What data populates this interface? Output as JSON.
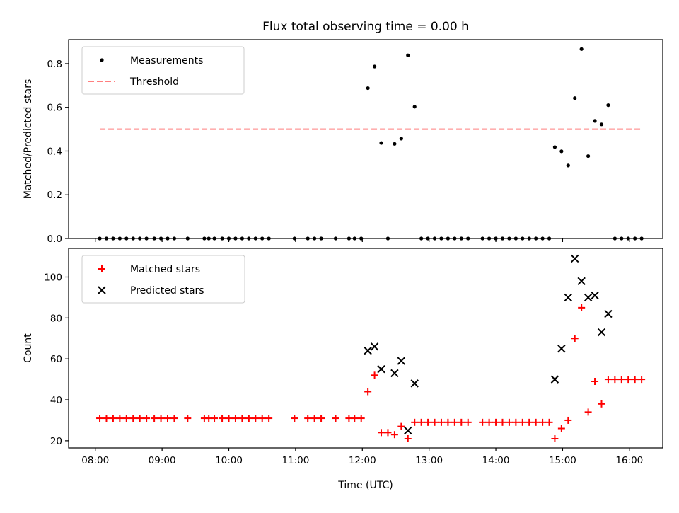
{
  "chart_data": [
    {
      "type": "scatter",
      "title": "Flux total observing time = 0.00 h",
      "ylabel": "Matched/Predicted stars",
      "xlim": [
        "07:36",
        "16:30"
      ],
      "ylim": [
        0,
        0.91
      ],
      "yticks": [
        "0.0",
        "0.2",
        "0.4",
        "0.6",
        "0.8"
      ],
      "grid": false,
      "legend_position": "upper-left",
      "series": [
        {
          "name": "Measurements",
          "marker": "dot",
          "color": "#000000",
          "points": [
            [
              "08:04",
              0
            ],
            [
              "08:10",
              0
            ],
            [
              "08:16",
              0
            ],
            [
              "08:22",
              0
            ],
            [
              "08:28",
              0
            ],
            [
              "08:34",
              0
            ],
            [
              "08:40",
              0
            ],
            [
              "08:46",
              0
            ],
            [
              "08:53",
              0
            ],
            [
              "08:59",
              0
            ],
            [
              "09:05",
              0
            ],
            [
              "09:11",
              0
            ],
            [
              "09:23",
              0
            ],
            [
              "09:38",
              0
            ],
            [
              "09:42",
              0
            ],
            [
              "09:47",
              0
            ],
            [
              "09:54",
              0
            ],
            [
              "10:00",
              0
            ],
            [
              "10:06",
              0
            ],
            [
              "10:12",
              0
            ],
            [
              "10:18",
              0
            ],
            [
              "10:24",
              0
            ],
            [
              "10:30",
              0
            ],
            [
              "10:36",
              0
            ],
            [
              "10:59",
              0
            ],
            [
              "11:11",
              0
            ],
            [
              "11:17",
              0
            ],
            [
              "11:23",
              0
            ],
            [
              "11:36",
              0
            ],
            [
              "11:48",
              0
            ],
            [
              "11:53",
              0
            ],
            [
              "11:59",
              0
            ],
            [
              "12:05",
              0.688
            ],
            [
              "12:11",
              0.787
            ],
            [
              "12:17",
              0.437
            ],
            [
              "12:23",
              0
            ],
            [
              "12:29",
              0.433
            ],
            [
              "12:35",
              0.457
            ],
            [
              "12:41",
              0.838
            ],
            [
              "12:47",
              0.603
            ],
            [
              "12:53",
              0
            ],
            [
              "12:59",
              0
            ],
            [
              "13:05",
              0
            ],
            [
              "13:11",
              0
            ],
            [
              "13:17",
              0
            ],
            [
              "13:23",
              0
            ],
            [
              "13:29",
              0
            ],
            [
              "13:35",
              0
            ],
            [
              "13:48",
              0
            ],
            [
              "13:54",
              0
            ],
            [
              "14:00",
              0
            ],
            [
              "14:06",
              0
            ],
            [
              "14:12",
              0
            ],
            [
              "14:18",
              0
            ],
            [
              "14:24",
              0
            ],
            [
              "14:30",
              0
            ],
            [
              "14:36",
              0
            ],
            [
              "14:42",
              0
            ],
            [
              "14:48",
              0
            ],
            [
              "14:53",
              0.418
            ],
            [
              "14:59",
              0.399
            ],
            [
              "15:05",
              0.334
            ],
            [
              "15:11",
              0.642
            ],
            [
              "15:17",
              0.867
            ],
            [
              "15:23",
              0.377
            ],
            [
              "15:29",
              0.538
            ],
            [
              "15:35",
              0.522
            ],
            [
              "15:41",
              0.61
            ],
            [
              "15:47",
              0
            ],
            [
              "15:53",
              0
            ],
            [
              "15:59",
              0
            ],
            [
              "16:05",
              0
            ],
            [
              "16:11",
              0
            ]
          ]
        },
        {
          "name": "Threshold",
          "marker": "dashed-line",
          "color": "#ff7f7f",
          "points": [
            [
              "08:04",
              0.5
            ],
            [
              "16:11",
              0.5
            ]
          ]
        }
      ]
    },
    {
      "type": "scatter",
      "xlabel": "Time (UTC)",
      "ylabel": "Count",
      "xticks": [
        "08:00",
        "09:00",
        "10:00",
        "11:00",
        "12:00",
        "13:00",
        "14:00",
        "15:00",
        "16:00"
      ],
      "xlim": [
        "07:36",
        "16:30"
      ],
      "ylim": [
        16.5,
        114
      ],
      "yticks": [
        "20",
        "40",
        "60",
        "80",
        "100"
      ],
      "grid": false,
      "legend_position": "upper-left",
      "series": [
        {
          "name": "Matched stars",
          "marker": "plus",
          "color": "#ff0000",
          "points": [
            [
              "08:04",
              31
            ],
            [
              "08:10",
              31
            ],
            [
              "08:16",
              31
            ],
            [
              "08:22",
              31
            ],
            [
              "08:28",
              31
            ],
            [
              "08:34",
              31
            ],
            [
              "08:40",
              31
            ],
            [
              "08:46",
              31
            ],
            [
              "08:53",
              31
            ],
            [
              "08:59",
              31
            ],
            [
              "09:05",
              31
            ],
            [
              "09:11",
              31
            ],
            [
              "09:23",
              31
            ],
            [
              "09:38",
              31
            ],
            [
              "09:42",
              31
            ],
            [
              "09:47",
              31
            ],
            [
              "09:54",
              31
            ],
            [
              "10:00",
              31
            ],
            [
              "10:06",
              31
            ],
            [
              "10:12",
              31
            ],
            [
              "10:18",
              31
            ],
            [
              "10:24",
              31
            ],
            [
              "10:30",
              31
            ],
            [
              "10:36",
              31
            ],
            [
              "10:59",
              31
            ],
            [
              "11:11",
              31
            ],
            [
              "11:17",
              31
            ],
            [
              "11:23",
              31
            ],
            [
              "11:36",
              31
            ],
            [
              "11:48",
              31
            ],
            [
              "11:53",
              31
            ],
            [
              "11:59",
              31
            ],
            [
              "12:05",
              44
            ],
            [
              "12:11",
              52
            ],
            [
              "12:17",
              24
            ],
            [
              "12:23",
              24
            ],
            [
              "12:29",
              23
            ],
            [
              "12:35",
              27
            ],
            [
              "12:41",
              21
            ],
            [
              "12:47",
              29
            ],
            [
              "12:53",
              29
            ],
            [
              "12:59",
              29
            ],
            [
              "13:05",
              29
            ],
            [
              "13:11",
              29
            ],
            [
              "13:17",
              29
            ],
            [
              "13:23",
              29
            ],
            [
              "13:29",
              29
            ],
            [
              "13:35",
              29
            ],
            [
              "13:48",
              29
            ],
            [
              "13:54",
              29
            ],
            [
              "14:00",
              29
            ],
            [
              "14:06",
              29
            ],
            [
              "14:12",
              29
            ],
            [
              "14:18",
              29
            ],
            [
              "14:24",
              29
            ],
            [
              "14:30",
              29
            ],
            [
              "14:36",
              29
            ],
            [
              "14:42",
              29
            ],
            [
              "14:48",
              29
            ],
            [
              "14:53",
              21
            ],
            [
              "14:59",
              26
            ],
            [
              "15:05",
              30
            ],
            [
              "15:11",
              70
            ],
            [
              "15:17",
              85
            ],
            [
              "15:23",
              34
            ],
            [
              "15:29",
              49
            ],
            [
              "15:35",
              38
            ],
            [
              "15:41",
              50
            ],
            [
              "15:47",
              50
            ],
            [
              "15:53",
              50
            ],
            [
              "15:59",
              50
            ],
            [
              "16:05",
              50
            ],
            [
              "16:11",
              50
            ]
          ]
        },
        {
          "name": "Predicted stars",
          "marker": "x",
          "color": "#000000",
          "points": [
            [
              "12:05",
              64
            ],
            [
              "12:11",
              66
            ],
            [
              "12:17",
              55
            ],
            [
              "12:29",
              53
            ],
            [
              "12:35",
              59
            ],
            [
              "12:41",
              25
            ],
            [
              "12:47",
              48
            ],
            [
              "14:53",
              50
            ],
            [
              "14:59",
              65
            ],
            [
              "15:05",
              90
            ],
            [
              "15:11",
              109
            ],
            [
              "15:17",
              98
            ],
            [
              "15:23",
              90
            ],
            [
              "15:29",
              91
            ],
            [
              "15:35",
              73
            ],
            [
              "15:41",
              82
            ]
          ]
        }
      ]
    }
  ]
}
